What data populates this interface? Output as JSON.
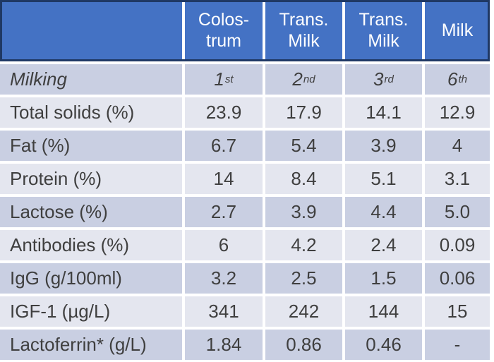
{
  "chart_data": {
    "type": "table",
    "title": "",
    "header": [
      "",
      "Colostrum",
      "Trans. Milk",
      "Trans. Milk",
      "Milk"
    ],
    "rows": [
      [
        "Milking",
        "1st",
        "2nd",
        "3rd",
        "6th"
      ],
      [
        "Total solids (%)",
        "23.9",
        "17.9",
        "14.1",
        "12.9"
      ],
      [
        "Fat (%)",
        "6.7",
        "5.4",
        "3.9",
        "4"
      ],
      [
        "Protein (%)",
        "14",
        "8.4",
        "5.1",
        "3.1"
      ],
      [
        "Lactose (%)",
        "2.7",
        "3.9",
        "4.4",
        "5.0"
      ],
      [
        "Antibodies (%)",
        "6",
        "4.2",
        "2.4",
        "0.09"
      ],
      [
        "IgG (g/100ml)",
        "3.2",
        "2.5",
        "1.5",
        "0.06"
      ],
      [
        "IGF-1 (µg/L)",
        "341",
        "242",
        "144",
        "15"
      ],
      [
        "Lactoferrin* (g/L)",
        "1.84",
        "0.86",
        "0.46",
        "-"
      ]
    ],
    "layout": "banded rows, blue header row with dark outline, white cell gaps"
  },
  "table": {
    "header": [
      "",
      "Colos-\ntrum",
      "Trans.\nMilk",
      "Trans.\nMilk",
      "Milk"
    ],
    "rows": [
      {
        "label": "Milking",
        "italic": true,
        "values": [
          {
            "num": "1",
            "sup": "st"
          },
          {
            "num": "2",
            "sup": "nd"
          },
          {
            "num": "3",
            "sup": "rd"
          },
          {
            "num": "6",
            "sup": "th"
          }
        ]
      },
      {
        "label": "Total solids (%)",
        "values": [
          "23.9",
          "17.9",
          "14.1",
          "12.9"
        ]
      },
      {
        "label": "Fat (%)",
        "values": [
          "6.7",
          "5.4",
          "3.9",
          "4"
        ]
      },
      {
        "label": "Protein (%)",
        "values": [
          "14",
          "8.4",
          "5.1",
          "3.1"
        ]
      },
      {
        "label": "Lactose (%)",
        "values": [
          "2.7",
          "3.9",
          "4.4",
          "5.0"
        ]
      },
      {
        "label": "Antibodies (%)",
        "values": [
          "6",
          "4.2",
          "2.4",
          "0.09"
        ]
      },
      {
        "label": "IgG (g/100ml)",
        "values": [
          "3.2",
          "2.5",
          "1.5",
          "0.06"
        ]
      },
      {
        "label": "IGF-1 (µg/L)",
        "values": [
          "341",
          "242",
          "144",
          "15"
        ]
      },
      {
        "label": "Lactoferrin* (g/L)",
        "values": [
          "1.84",
          "0.86",
          "0.46",
          "-"
        ]
      }
    ],
    "colors": {
      "header_bg": "#4472C4",
      "header_text": "#FFFFFF",
      "header_border": "#1F3864",
      "band_dark": "#C9CFE2",
      "band_light": "#E4E6EF",
      "body_text": "#3F3F3F",
      "gap": "#FFFFFF"
    }
  }
}
